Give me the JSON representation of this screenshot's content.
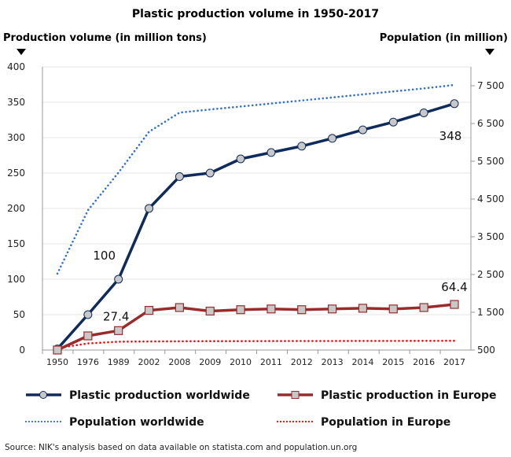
{
  "chart_data": {
    "type": "line",
    "title": "Plastic production volume in 1950-2017",
    "ylabel": "Production volume (in million tons)",
    "y2label": "Population (in million)",
    "categories": [
      "1950",
      "1976",
      "1989",
      "2002",
      "2008",
      "2009",
      "2010",
      "2011",
      "2012",
      "2013",
      "2014",
      "2015",
      "2016",
      "2017"
    ],
    "ylim": [
      0,
      400
    ],
    "yticks": [
      0,
      50,
      100,
      150,
      200,
      250,
      300,
      350,
      400
    ],
    "y2lim": [
      500,
      8000
    ],
    "y2ticks": [
      500,
      1500,
      2500,
      3500,
      4500,
      5500,
      6500,
      7500
    ],
    "y2tick_labels": [
      "500",
      "1 500",
      "2 500",
      "3 500",
      "4 500",
      "5 500",
      "6 500",
      "7 500"
    ],
    "grid": true,
    "legend": "bottom",
    "series": [
      {
        "name": "Plastic production worldwide",
        "axis": "left",
        "style": "solid-circle",
        "color": "#0f2b5b",
        "values": [
          1.5,
          50,
          100,
          200,
          245,
          250,
          270,
          279,
          288,
          299,
          311,
          322,
          335,
          348
        ]
      },
      {
        "name": "Plastic production in Europe",
        "axis": "left",
        "style": "solid-square",
        "color": "#9a2b2b",
        "values": [
          0,
          20,
          27.4,
          56,
          60,
          55,
          57,
          58,
          57,
          58,
          59,
          58,
          60,
          64.4
        ]
      },
      {
        "name": "Population worldwide",
        "axis": "right",
        "style": "dotted",
        "color": "#2f6fd0",
        "values": [
          2525,
          4200,
          5200,
          6280,
          6790,
          6870,
          6950,
          7030,
          7110,
          7190,
          7270,
          7350,
          7430,
          7520
        ]
      },
      {
        "name": "Population in Europe",
        "axis": "right",
        "style": "dotted",
        "color": "#ff0000",
        "values": [
          549,
          676,
          720,
          727,
          732,
          735,
          736,
          738,
          739,
          740,
          741,
          742,
          743,
          745
        ]
      }
    ],
    "annotations": [
      {
        "text": "100",
        "series": 0,
        "index": 2
      },
      {
        "text": "27.4",
        "series": 1,
        "index": 2
      },
      {
        "text": "348",
        "series": 0,
        "index": 13
      },
      {
        "text": "64.4",
        "series": 1,
        "index": 13
      }
    ]
  },
  "source": "Source: NIK's analysis based on data available on statista.com and population.un.org"
}
